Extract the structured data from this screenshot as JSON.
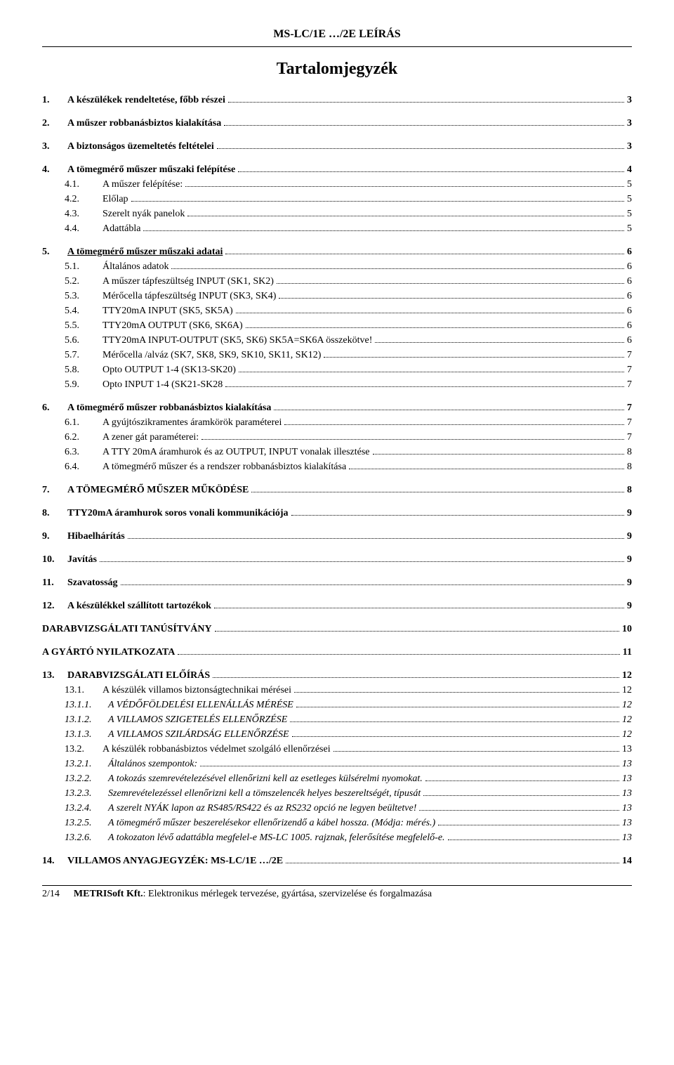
{
  "header": "MS-LC/1E …/2E LEÍRÁS",
  "title": "Tartalomjegyzék",
  "footer": {
    "pageNum": "2/14",
    "company": "METRISoft Kft.",
    "rest": ": Elektronikus mérlegek tervezése, gyártása, szervizelése és forgalmazása"
  },
  "toc": [
    {
      "lvl": 1,
      "num": "1.",
      "label": "A készülékek rendeltetése, főbb részei",
      "page": "3",
      "gapAfter": true
    },
    {
      "lvl": 1,
      "num": "2.",
      "label": "A műszer robbanásbiztos kialakítása",
      "page": "3",
      "gapAfter": true
    },
    {
      "lvl": 1,
      "num": "3.",
      "label": "A biztonságos üzemeltetés feltételei",
      "page": "3",
      "gapAfter": true
    },
    {
      "lvl": 1,
      "num": "4.",
      "label": "A tömegmérő műszer műszaki felépítése",
      "page": "4"
    },
    {
      "lvl": 2,
      "num": "4.1.",
      "label": "A műszer felépítése:",
      "page": "5"
    },
    {
      "lvl": 2,
      "num": "4.2.",
      "label": "Előlap",
      "page": "5"
    },
    {
      "lvl": 2,
      "num": "4.3.",
      "label": "Szerelt nyák panelok",
      "page": "5"
    },
    {
      "lvl": 2,
      "num": "4.4.",
      "label": "Adattábla",
      "page": "5",
      "gapAfter": true
    },
    {
      "lvl": 1,
      "num": "5.",
      "label": "A tömegmérő műszer műszaki adatai",
      "page": "6",
      "underline": true
    },
    {
      "lvl": 2,
      "num": "5.1.",
      "label": "Általános adatok",
      "page": "6"
    },
    {
      "lvl": 2,
      "num": "5.2.",
      "label": "A műszer tápfeszültség INPUT (SK1, SK2)",
      "page": "6"
    },
    {
      "lvl": 2,
      "num": "5.3.",
      "label": "Mérőcella tápfeszültség INPUT (SK3, SK4)",
      "page": "6"
    },
    {
      "lvl": 2,
      "num": "5.4.",
      "label": "TTY20mA INPUT (SK5, SK5A)",
      "page": "6"
    },
    {
      "lvl": 2,
      "num": "5.5.",
      "label": "TTY20mA OUTPUT (SK6, SK6A)",
      "page": "6"
    },
    {
      "lvl": 2,
      "num": "5.6.",
      "label": "TTY20mA INPUT-OUTPUT (SK5, SK6) SK5A=SK6A összekötve!",
      "page": "6"
    },
    {
      "lvl": 2,
      "num": "5.7.",
      "label": "Mérőcella /alváz (SK7, SK8, SK9, SK10, SK11, SK12)",
      "page": "7"
    },
    {
      "lvl": 2,
      "num": "5.8.",
      "label": "Opto OUTPUT 1-4 (SK13-SK20)",
      "page": "7"
    },
    {
      "lvl": 2,
      "num": "5.9.",
      "label": "Opto INPUT 1-4 (SK21-SK28",
      "page": "7",
      "gapAfter": true
    },
    {
      "lvl": 1,
      "num": "6.",
      "label": "A tömegmérő műszer robbanásbiztos kialakítása",
      "page": "7"
    },
    {
      "lvl": 2,
      "num": "6.1.",
      "label": "A gyújtószikramentes áramkörök paraméterei",
      "page": "7"
    },
    {
      "lvl": 2,
      "num": "6.2.",
      "label": "A zener gát paraméterei:",
      "page": "7"
    },
    {
      "lvl": 2,
      "num": "6.3.",
      "label": "A TTY 20mA áramhurok és az OUTPUT, INPUT vonalak illesztése",
      "page": "8"
    },
    {
      "lvl": 2,
      "num": "6.4.",
      "label": "A tömegmérő műszer és a rendszer robbanásbiztos kialakítása",
      "page": "8",
      "gapAfter": true
    },
    {
      "lvl": 1,
      "num": "7.",
      "label": "A TÖMEGMÉRŐ MŰSZER MŰKÖDÉSE",
      "page": "8",
      "gapAfter": true
    },
    {
      "lvl": 1,
      "num": "8.",
      "label": "TTY20mA áramhurok soros vonali kommunikációja",
      "page": "9",
      "gapAfter": true
    },
    {
      "lvl": 1,
      "num": "9.",
      "label": "Hibaelhárítás",
      "page": "9",
      "gapAfter": true
    },
    {
      "lvl": 1,
      "num": "10.",
      "label": "Javítás",
      "page": "9",
      "gapAfter": true
    },
    {
      "lvl": 1,
      "num": "11.",
      "label": "Szavatosság",
      "page": "9",
      "gapAfter": true
    },
    {
      "lvl": 1,
      "num": "12.",
      "label": "A készülékkel szállított tartozékok",
      "page": "9",
      "gapAfter": true
    },
    {
      "lvl": 1,
      "num": "",
      "label": "DARABVIZSGÁLATI TANÚSÍTVÁNY",
      "page": "10",
      "noNum": true,
      "gapAfter": true
    },
    {
      "lvl": 1,
      "num": "",
      "label": "A GYÁRTÓ NYILATKOZATA",
      "page": "11",
      "noNum": true,
      "gapAfter": true
    },
    {
      "lvl": 1,
      "num": "13.",
      "label": "DARABVIZSGÁLATI ELŐÍRÁS",
      "page": "12"
    },
    {
      "lvl": 2,
      "num": "13.1.",
      "label": "A készülék villamos biztonságtechnikai mérései",
      "page": "12"
    },
    {
      "lvl": 3,
      "num": "13.1.1.",
      "label": "A VÉDŐFÖLDELÉSI ELLENÁLLÁS MÉRÉSE",
      "page": "12"
    },
    {
      "lvl": 3,
      "num": "13.1.2.",
      "label": "A VILLAMOS SZIGETELÉS ELLENŐRZÉSE",
      "page": "12"
    },
    {
      "lvl": 3,
      "num": "13.1.3.",
      "label": "A VILLAMOS SZILÁRDSÁG ELLENŐRZÉSE",
      "page": "12"
    },
    {
      "lvl": 2,
      "num": "13.2.",
      "label": "A készülék robbanásbiztos védelmet szolgáló ellenőrzései",
      "page": "13"
    },
    {
      "lvl": 3,
      "num": "13.2.1.",
      "label": "Általános szempontok:",
      "page": "13"
    },
    {
      "lvl": 3,
      "num": "13.2.2.",
      "label": "A tokozás szemrevételezésével ellenőrizni kell az esetleges külsérelmi nyomokat.",
      "page": "13"
    },
    {
      "lvl": 3,
      "num": "13.2.3.",
      "label": "Szemrevételezéssel ellenőrizni kell a tömszelencék helyes beszereltségét, típusát",
      "page": "13"
    },
    {
      "lvl": 3,
      "num": "13.2.4.",
      "label": "A szerelt NYÁK lapon az RS485/RS422 és az RS232 opció ne legyen beültetve!",
      "page": "13"
    },
    {
      "lvl": 3,
      "num": "13.2.5.",
      "label": "A tömegmérő műszer beszerelésekor ellenőrizendő a kábel hossza. (Módja: mérés.)",
      "page": "13"
    },
    {
      "lvl": 3,
      "num": "13.2.6.",
      "label": "A tokozaton lévő adattábla megfelel-e MS-LC 1005. rajznak, felerősítése megfelelő-e.",
      "page": "13",
      "gapAfter": true
    },
    {
      "lvl": 1,
      "num": "14.",
      "label": "VILLAMOS ANYAGJEGYZÉK: MS-LC/1E …/2E",
      "page": "14"
    }
  ]
}
